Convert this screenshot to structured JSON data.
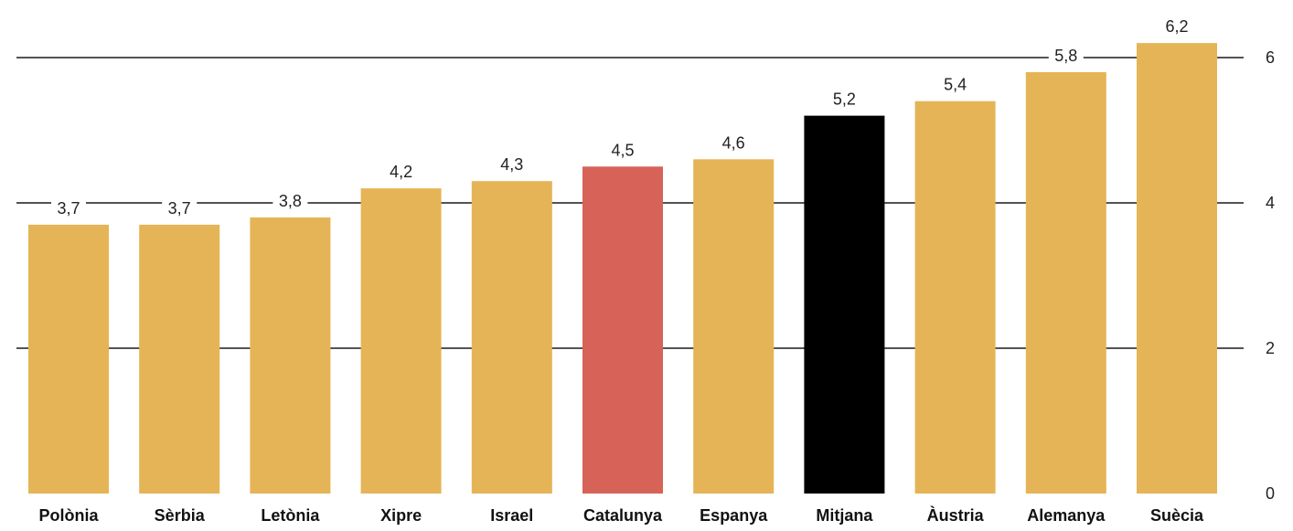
{
  "chart_data": {
    "type": "bar",
    "title": "",
    "xlabel": "",
    "ylabel": "",
    "categories": [
      "Polònia",
      "Sèrbia",
      "Letònia",
      "Xipre",
      "Israel",
      "Catalunya",
      "Espanya",
      "Mitjana",
      "Àustria",
      "Alemanya",
      "Suècia"
    ],
    "values": [
      3.7,
      3.7,
      3.8,
      4.2,
      4.3,
      4.5,
      4.6,
      5.2,
      5.4,
      5.8,
      6.2
    ],
    "value_labels": [
      "3,7",
      "3,7",
      "3,8",
      "4,2",
      "4,3",
      "4,5",
      "4,6",
      "5,2",
      "5,4",
      "5,8",
      "6,2"
    ],
    "ylim": [
      0,
      6.5
    ],
    "yticks": [
      0,
      2,
      4,
      6
    ],
    "ytick_labels": [
      "0",
      "2",
      "4",
      "6"
    ],
    "y_axis_position": "right",
    "grid": true,
    "legend": "none",
    "colors": {
      "default": "#E5B456",
      "highlight": "#D76257",
      "average": "#000000"
    },
    "bar_colors": [
      "default",
      "default",
      "default",
      "default",
      "default",
      "highlight",
      "default",
      "average",
      "default",
      "default",
      "default"
    ]
  }
}
